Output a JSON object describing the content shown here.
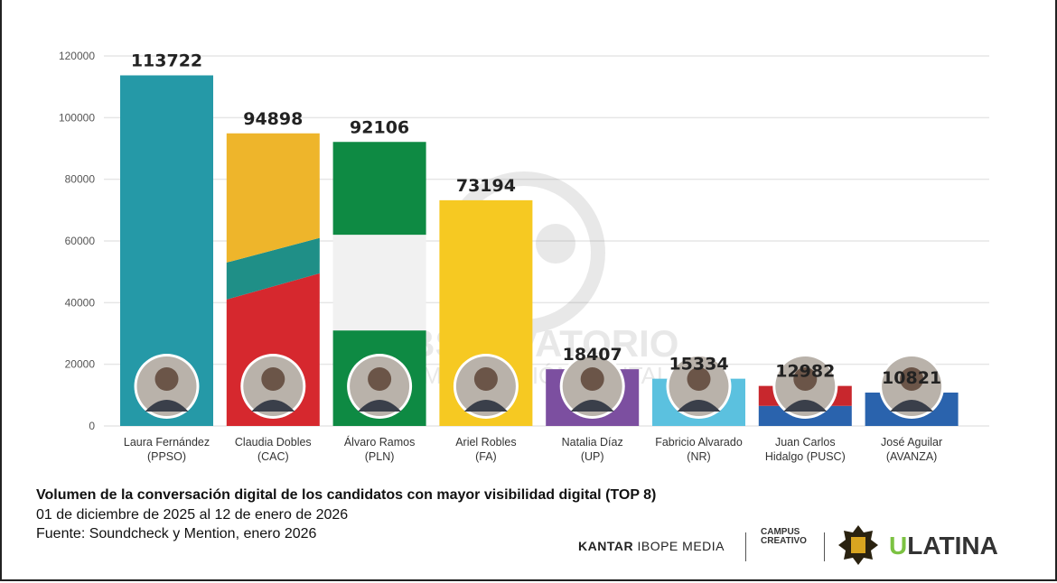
{
  "chart_data": {
    "type": "bar",
    "categories": [
      "Laura Fernández (PPSO)",
      "Claudia Dobles (CAC)",
      "Álvaro Ramos (PLN)",
      "Ariel Robles (FA)",
      "Natalia Díaz (UP)",
      "Fabricio Alvarado (NR)",
      "Juan Carlos Hidalgo (PUSC)",
      "José Aguilar (AVANZA)"
    ],
    "label_lines": [
      [
        "Laura Fernández",
        "(PPSO)"
      ],
      [
        "Claudia Dobles",
        "(CAC)"
      ],
      [
        "Álvaro Ramos",
        "(PLN)"
      ],
      [
        "Ariel Robles",
        "(FA)"
      ],
      [
        "Natalia Díaz",
        "(UP)"
      ],
      [
        "Fabricio Alvarado",
        "(NR)"
      ],
      [
        "Juan Carlos",
        "Hidalgo (PUSC)"
      ],
      [
        "José Aguilar",
        "(AVANZA)"
      ]
    ],
    "values": [
      113722,
      94898,
      92106,
      73194,
      18407,
      15334,
      12982,
      10821
    ],
    "data_labels": [
      "113722",
      "94898",
      "92106",
      "73194",
      "18407",
      "15334",
      "12982",
      "10821"
    ],
    "bar_colors": [
      [
        {
          "color": "#2599a7"
        }
      ],
      [
        {
          "color": "#d6282e",
          "to": [
            41000,
            49500
          ]
        },
        {
          "color": "#1f8f87",
          "to": [
            53000,
            61000
          ]
        },
        {
          "color": "#eeb52b"
        }
      ],
      [
        {
          "color": "#0e8a43",
          "to": [
            31000,
            31000
          ]
        },
        {
          "color": "#f1f1f1",
          "to": [
            62000,
            62000
          ]
        },
        {
          "color": "#0e8a43"
        }
      ],
      [
        {
          "color": "#f6c922"
        }
      ],
      [
        {
          "color": "#7c4fa0"
        }
      ],
      [
        {
          "color": "#5bc1df"
        }
      ],
      [
        {
          "color": "#2a63ad",
          "to": [
            6500,
            6500
          ]
        },
        {
          "color": "#c8272d"
        }
      ],
      [
        {
          "color": "#2a63ad"
        }
      ]
    ],
    "ylim": [
      0,
      120000
    ],
    "yticks": [
      0,
      20000,
      40000,
      60000,
      80000,
      100000,
      120000
    ],
    "ytick_labels": [
      "0",
      "20000",
      "40000",
      "60000",
      "80000",
      "100000",
      "120000"
    ],
    "grid": true,
    "title": "Volumen de la conversación digital de los candidatos con mayor visibilidad digital (TOP 8)",
    "xlabel": "",
    "ylabel": ""
  },
  "caption": {
    "title": "Volumen de la conversación digital de los candidatos con mayor visibilidad digital (TOP 8)",
    "date_range": "01 de diciembre de 2025 al 12 de enero de 2026",
    "source": "Fuente: Soundcheck y Mention, enero 2026"
  },
  "watermark": {
    "line1": "OBSERVATORIO",
    "line2": "COMUNICACIÓN DIGITAL"
  },
  "logos": {
    "kantar_bold": "KANTAR",
    "kantar_light": "IBOPE MEDIA",
    "campus_line1": "CAMPUS",
    "campus_line2": "CREATIVO",
    "ulatina_u": "U",
    "ulatina_rest": "LATINA"
  }
}
